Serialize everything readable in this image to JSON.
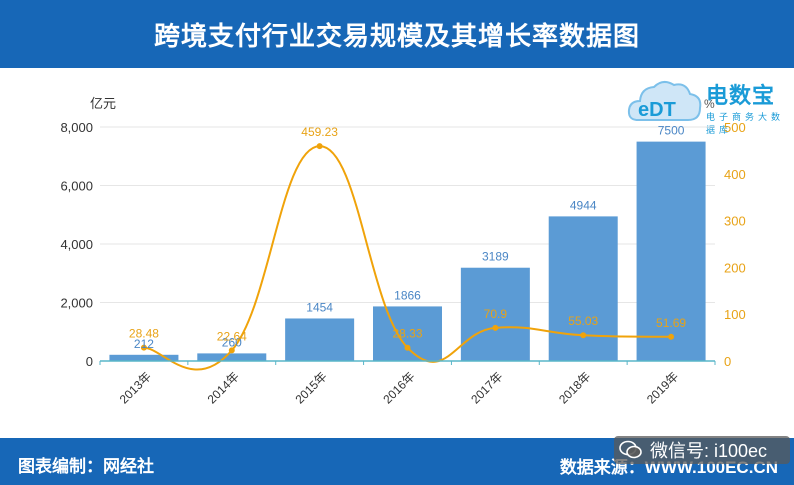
{
  "header": {
    "title": "跨境支付行业交易规模及其增长率数据图"
  },
  "footer": {
    "left": "图表编制：网经社",
    "right": "数据来源：WWW.100EC.CN"
  },
  "watermark": {
    "text": "微信号: i100ec"
  },
  "logo": {
    "brand": "电数宝",
    "sub": "电子商务大数据库"
  },
  "colors": {
    "header_bg": "#1767b7",
    "bar": "#5b9bd5",
    "line": "#f0a30a",
    "axis_left_text": "#333333",
    "axis_right_text": "#e8a317"
  },
  "chart_data": {
    "type": "bar+line",
    "categories": [
      "2013年",
      "2014年",
      "2015年",
      "2016年",
      "2017年",
      "2018年",
      "2019年"
    ],
    "series": [
      {
        "values": [
          212,
          260,
          1454,
          1866,
          3189,
          4944,
          7500
        ],
        "labels": [
          "212",
          "260",
          "1454",
          "1866",
          "3189",
          "4944",
          "7500"
        ],
        "axis": "left",
        "kind": "bar"
      },
      {
        "values": [
          28.48,
          22.64,
          459.23,
          28.33,
          70.9,
          55.03,
          51.69
        ],
        "labels": [
          "28.48",
          "22.64",
          "459.23",
          "28.33",
          "70.9",
          "55.03",
          "51.69"
        ],
        "axis": "right",
        "kind": "line"
      }
    ],
    "y_left": {
      "unit": "亿元",
      "range": [
        0,
        8000
      ],
      "ticks": [
        "0",
        "2,000",
        "4,000",
        "6,000",
        "8,000"
      ]
    },
    "y_right": {
      "unit": "%",
      "range": [
        0,
        500
      ],
      "ticks": [
        "0",
        "100",
        "200",
        "300",
        "400",
        "500"
      ]
    },
    "grid": true
  }
}
